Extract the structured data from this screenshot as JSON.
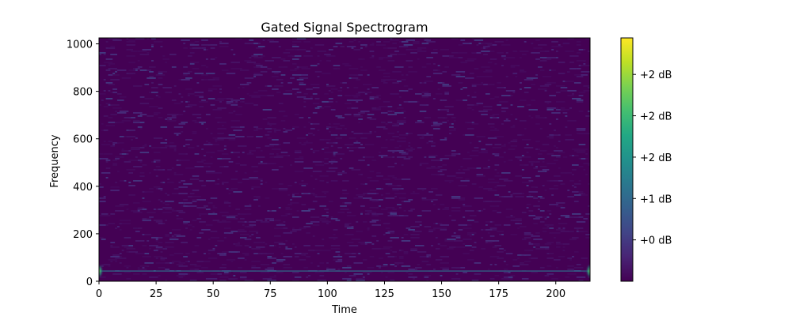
{
  "chart_data": {
    "type": "heatmap",
    "title": "Gated Signal Spectrogram",
    "xlabel": "Time",
    "ylabel": "Frequency",
    "xlim": [
      0,
      215
    ],
    "ylim": [
      0,
      1025
    ],
    "x_ticks": [
      0,
      25,
      50,
      75,
      100,
      125,
      150,
      175,
      200
    ],
    "y_ticks": [
      0,
      200,
      400,
      600,
      800,
      1000
    ],
    "colormap": "viridis",
    "background_level": 0.02,
    "tone": {
      "frequency": 43,
      "level": 0.38,
      "edge_bursts": [
        0,
        215
      ],
      "edge_burst_level": 0.6
    },
    "colorbar": {
      "tick_labels": [
        "+0 dB",
        "+1 dB",
        "+2 dB",
        "+2 dB",
        "+2 dB"
      ],
      "tick_positions": [
        0.17,
        0.34,
        0.51,
        0.68,
        0.85
      ]
    }
  }
}
